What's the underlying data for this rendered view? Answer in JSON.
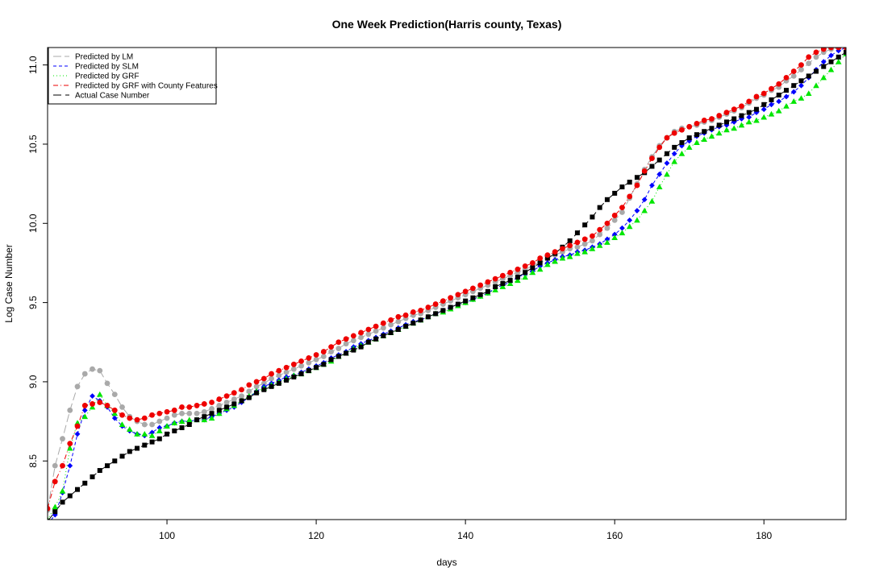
{
  "chart_data": {
    "type": "scatter",
    "title": "One Week Prediction(Harris county, Texas)",
    "xlabel": "days",
    "ylabel": "Log Case Number",
    "xlim": [
      84,
      191
    ],
    "ylim": [
      8.13,
      11.11
    ],
    "x_ticks": [
      100,
      120,
      140,
      160,
      180
    ],
    "y_ticks": [
      8.5,
      9.0,
      9.5,
      10.0,
      10.5,
      11.0
    ],
    "grid": false,
    "legend_position": "top-left",
    "colors": {
      "lm": "#a9a9a9",
      "slm": "#0000ff",
      "grf": "#00e600",
      "grf_county": "#ee0000",
      "actual": "#000000"
    },
    "x": [
      84,
      85,
      86,
      87,
      88,
      89,
      90,
      91,
      92,
      93,
      94,
      95,
      96,
      97,
      98,
      99,
      100,
      101,
      102,
      103,
      104,
      105,
      106,
      107,
      108,
      109,
      110,
      111,
      112,
      113,
      114,
      115,
      116,
      117,
      118,
      119,
      120,
      121,
      122,
      123,
      124,
      125,
      126,
      127,
      128,
      129,
      130,
      131,
      132,
      133,
      134,
      135,
      136,
      137,
      138,
      139,
      140,
      141,
      142,
      143,
      144,
      145,
      146,
      147,
      148,
      149,
      150,
      151,
      152,
      153,
      154,
      155,
      156,
      157,
      158,
      159,
      160,
      161,
      162,
      163,
      164,
      165,
      166,
      167,
      168,
      169,
      170,
      171,
      172,
      173,
      174,
      175,
      176,
      177,
      178,
      179,
      180,
      181,
      182,
      183,
      184,
      185,
      186,
      187,
      188,
      189,
      190,
      191
    ],
    "series": [
      {
        "name": "Predicted by LM",
        "marker": "circle",
        "key": "lm",
        "values": [
          8.19,
          8.47,
          8.64,
          8.82,
          8.97,
          9.05,
          9.08,
          9.07,
          8.99,
          8.92,
          8.84,
          8.78,
          8.75,
          8.73,
          8.73,
          8.75,
          8.77,
          8.79,
          8.8,
          8.8,
          8.8,
          8.81,
          8.83,
          8.85,
          8.87,
          8.89,
          8.91,
          8.94,
          8.97,
          8.99,
          9.02,
          9.04,
          9.06,
          9.08,
          9.1,
          9.12,
          9.14,
          9.16,
          9.19,
          9.21,
          9.24,
          9.26,
          9.28,
          9.3,
          9.32,
          9.34,
          9.36,
          9.38,
          9.4,
          9.42,
          9.43,
          9.45,
          9.47,
          9.49,
          9.51,
          9.53,
          9.55,
          9.57,
          9.59,
          9.61,
          9.63,
          9.65,
          9.67,
          9.69,
          9.71,
          9.73,
          9.76,
          9.78,
          9.8,
          9.82,
          9.84,
          9.85,
          9.87,
          9.89,
          9.93,
          9.97,
          10.02,
          10.07,
          10.16,
          10.25,
          10.34,
          10.42,
          10.49,
          10.54,
          10.58,
          10.6,
          10.61,
          10.62,
          10.64,
          10.65,
          10.67,
          10.69,
          10.71,
          10.73,
          10.76,
          10.79,
          10.81,
          10.84,
          10.86,
          10.9,
          10.93,
          10.97,
          11.01,
          11.05,
          11.08,
          11.1,
          11.11,
          11.11
        ]
      },
      {
        "name": "Predicted by SLM",
        "marker": "diamond",
        "key": "slm",
        "values": [
          8.1,
          8.16,
          8.3,
          8.47,
          8.67,
          8.82,
          8.91,
          8.88,
          8.84,
          8.77,
          8.72,
          8.69,
          8.67,
          8.66,
          8.68,
          8.71,
          8.72,
          8.74,
          8.75,
          8.75,
          8.76,
          8.76,
          8.78,
          8.8,
          8.82,
          8.84,
          8.87,
          8.9,
          8.94,
          8.97,
          8.99,
          9.01,
          9.03,
          9.04,
          9.06,
          9.08,
          9.1,
          9.12,
          9.15,
          9.17,
          9.19,
          9.22,
          9.24,
          9.26,
          9.28,
          9.3,
          9.32,
          9.34,
          9.36,
          9.38,
          9.39,
          9.41,
          9.43,
          9.45,
          9.47,
          9.49,
          9.5,
          9.52,
          9.54,
          9.56,
          9.59,
          9.61,
          9.63,
          9.66,
          9.68,
          9.7,
          9.73,
          9.75,
          9.77,
          9.79,
          9.8,
          9.82,
          9.83,
          9.85,
          9.87,
          9.9,
          9.93,
          9.97,
          10.02,
          10.08,
          10.15,
          10.24,
          10.31,
          10.38,
          10.44,
          10.49,
          10.52,
          10.55,
          10.57,
          10.59,
          10.61,
          10.62,
          10.64,
          10.66,
          10.67,
          10.7,
          10.72,
          10.75,
          10.77,
          10.8,
          10.83,
          10.87,
          10.92,
          10.97,
          11.02,
          11.06,
          11.09,
          11.11
        ]
      },
      {
        "name": "Predicted by GRF",
        "marker": "triangle",
        "key": "grf",
        "values": [
          8.13,
          8.21,
          8.31,
          8.58,
          8.74,
          8.78,
          8.84,
          8.92,
          8.85,
          8.8,
          8.73,
          8.7,
          8.67,
          8.67,
          8.66,
          8.69,
          8.72,
          8.74,
          8.75,
          8.76,
          8.76,
          8.76,
          8.77,
          8.8,
          8.83,
          8.85,
          8.88,
          8.91,
          8.94,
          8.96,
          8.98,
          9.0,
          9.02,
          9.04,
          9.05,
          9.07,
          9.09,
          9.11,
          9.13,
          9.16,
          9.18,
          9.21,
          9.23,
          9.25,
          9.27,
          9.29,
          9.31,
          9.33,
          9.35,
          9.37,
          9.39,
          9.41,
          9.43,
          9.44,
          9.46,
          9.48,
          9.5,
          9.52,
          9.54,
          9.56,
          9.58,
          9.6,
          9.62,
          9.64,
          9.66,
          9.69,
          9.71,
          9.74,
          9.76,
          9.78,
          9.79,
          9.81,
          9.82,
          9.84,
          9.86,
          9.88,
          9.91,
          9.94,
          9.98,
          10.02,
          10.08,
          10.14,
          10.23,
          10.31,
          10.39,
          10.44,
          10.48,
          10.51,
          10.53,
          10.55,
          10.57,
          10.59,
          10.6,
          10.62,
          10.64,
          10.65,
          10.67,
          10.69,
          10.71,
          10.74,
          10.77,
          10.79,
          10.82,
          10.87,
          10.92,
          10.97,
          11.02,
          11.07
        ]
      },
      {
        "name": "Predicted by GRF with County Features",
        "marker": "circle",
        "key": "grf_county",
        "values": [
          8.2,
          8.37,
          8.47,
          8.61,
          8.72,
          8.85,
          8.86,
          8.87,
          8.85,
          8.82,
          8.79,
          8.77,
          8.76,
          8.77,
          8.79,
          8.8,
          8.81,
          8.82,
          8.84,
          8.84,
          8.85,
          8.86,
          8.87,
          8.89,
          8.91,
          8.93,
          8.95,
          8.98,
          9.0,
          9.02,
          9.05,
          9.07,
          9.09,
          9.11,
          9.13,
          9.15,
          9.17,
          9.19,
          9.22,
          9.25,
          9.27,
          9.29,
          9.31,
          9.33,
          9.35,
          9.37,
          9.39,
          9.41,
          9.42,
          9.44,
          9.45,
          9.47,
          9.49,
          9.51,
          9.53,
          9.55,
          9.57,
          9.59,
          9.61,
          9.63,
          9.65,
          9.67,
          9.69,
          9.71,
          9.73,
          9.75,
          9.78,
          9.8,
          9.82,
          9.84,
          9.86,
          9.88,
          9.9,
          9.92,
          9.96,
          10.0,
          10.05,
          10.1,
          10.17,
          10.24,
          10.33,
          10.41,
          10.48,
          10.54,
          10.57,
          10.59,
          10.61,
          10.63,
          10.65,
          10.66,
          10.68,
          10.7,
          10.72,
          10.74,
          10.77,
          10.8,
          10.82,
          10.85,
          10.88,
          10.92,
          10.96,
          11.0,
          11.05,
          11.08,
          11.1,
          11.11,
          11.11,
          11.11
        ]
      },
      {
        "name": "Actual Case Number",
        "marker": "square",
        "key": "actual",
        "values": [
          8.12,
          8.18,
          8.24,
          8.28,
          8.32,
          8.36,
          8.4,
          8.44,
          8.47,
          8.5,
          8.53,
          8.56,
          8.58,
          8.6,
          8.62,
          8.64,
          8.67,
          8.69,
          8.71,
          8.73,
          8.76,
          8.78,
          8.8,
          8.82,
          8.84,
          8.86,
          8.88,
          8.9,
          8.93,
          8.95,
          8.97,
          8.99,
          9.01,
          9.03,
          9.05,
          9.07,
          9.09,
          9.11,
          9.14,
          9.16,
          9.18,
          9.2,
          9.22,
          9.25,
          9.27,
          9.29,
          9.31,
          9.33,
          9.35,
          9.37,
          9.39,
          9.41,
          9.43,
          9.45,
          9.47,
          9.49,
          9.51,
          9.53,
          9.55,
          9.57,
          9.6,
          9.62,
          9.64,
          9.66,
          9.69,
          9.72,
          9.75,
          9.78,
          9.81,
          9.85,
          9.89,
          9.94,
          9.99,
          10.04,
          10.1,
          10.15,
          10.19,
          10.23,
          10.26,
          10.29,
          10.32,
          10.36,
          10.4,
          10.44,
          10.48,
          10.51,
          10.54,
          10.56,
          10.58,
          10.6,
          10.62,
          10.64,
          10.66,
          10.68,
          10.7,
          10.72,
          10.75,
          10.78,
          10.81,
          10.84,
          10.87,
          10.9,
          10.93,
          10.96,
          10.99,
          11.02,
          11.05,
          11.08
        ]
      }
    ]
  }
}
